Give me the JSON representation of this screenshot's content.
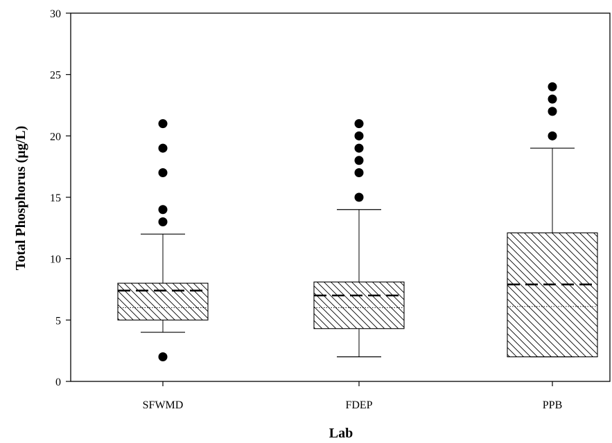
{
  "chart_data": {
    "type": "box",
    "xlabel": "Lab",
    "ylabel": "Total Phosphorus (µg/L)",
    "ylim": [
      0,
      30
    ],
    "yticks": [
      0,
      5,
      10,
      15,
      20,
      25,
      30
    ],
    "grid": false,
    "legend": "none",
    "categories": [
      "SFWMD",
      "FDEP",
      "PPB"
    ],
    "boxes": [
      {
        "category": "SFWMD",
        "whisker_low": 4,
        "q1": 5,
        "median": 6,
        "mean": 7.4,
        "q3": 8,
        "whisker_high": 12,
        "outliers": [
          2,
          13,
          14,
          17,
          19,
          21
        ]
      },
      {
        "category": "FDEP",
        "whisker_low": 2,
        "q1": 4.3,
        "median": 6,
        "mean": 7,
        "q3": 8.1,
        "whisker_high": 14,
        "outliers": [
          15,
          17,
          18,
          19,
          20,
          21
        ]
      },
      {
        "category": "PPB",
        "whisker_low": 2,
        "q1": 2,
        "median": 6.1,
        "mean": 7.9,
        "q3": 12.1,
        "whisker_high": 19,
        "outliers": [
          20,
          22,
          23,
          24
        ]
      }
    ]
  }
}
